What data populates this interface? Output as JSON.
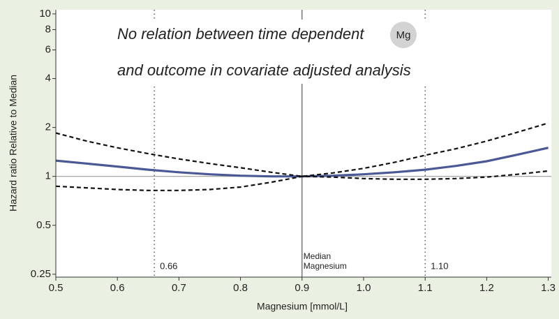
{
  "chart_data": {
    "type": "line",
    "annotations": [
      "No relation between time dependent",
      "and outcome in covariate adjusted analysis"
    ],
    "badge": "Mg",
    "x_label": "Magnesium [mmol/L]",
    "y_label": "Hazard ratio Relative to Median",
    "x": [
      0.5,
      0.55,
      0.6,
      0.65,
      0.7,
      0.75,
      0.8,
      0.85,
      0.9,
      0.95,
      1.0,
      1.05,
      1.1,
      1.15,
      1.2,
      1.25,
      1.3
    ],
    "series": [
      {
        "color": "#4a5896",
        "style": "solid",
        "values": [
          1.25,
          1.2,
          1.15,
          1.1,
          1.06,
          1.03,
          1.01,
          1.0,
          1.0,
          1.01,
          1.03,
          1.06,
          1.1,
          1.16,
          1.24,
          1.36,
          1.5
        ]
      },
      {
        "color": "#111111",
        "style": "dashed",
        "values": [
          1.85,
          1.65,
          1.5,
          1.38,
          1.28,
          1.2,
          1.13,
          1.06,
          1.0,
          1.05,
          1.12,
          1.22,
          1.35,
          1.48,
          1.65,
          1.87,
          2.13
        ]
      },
      {
        "color": "#111111",
        "style": "dashed",
        "values": [
          0.87,
          0.85,
          0.83,
          0.82,
          0.82,
          0.83,
          0.86,
          0.92,
          1.0,
          0.99,
          0.97,
          0.96,
          0.96,
          0.97,
          0.99,
          1.03,
          1.08
        ]
      }
    ],
    "xlim": [
      0.5,
      1.305
    ],
    "ylim": [
      0.24,
      10.6
    ],
    "log_y": true,
    "xticks": [
      0.5,
      0.6,
      0.7,
      0.8,
      0.9,
      {
        "value": 1,
        "label": "1.0"
      },
      1.1,
      1.2,
      1.3
    ],
    "yticks": [
      0.25,
      0.5,
      1,
      2,
      4,
      6,
      8,
      10
    ],
    "reference_lines": [
      {
        "axis": "y",
        "value": 1,
        "style": "solid"
      },
      {
        "axis": "x",
        "value": 0.9,
        "style": "solid",
        "label_lines": [
          "Median",
          "Magnesium"
        ]
      },
      {
        "axis": "x",
        "value": 0.66,
        "style": "dotted",
        "label": "0.66"
      },
      {
        "axis": "x",
        "value": 1.1,
        "style": "dotted",
        "label": "1.10"
      }
    ]
  }
}
